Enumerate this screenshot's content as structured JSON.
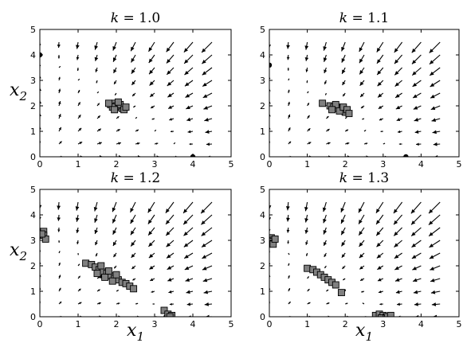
{
  "chart_data": [
    {
      "type": "scatter",
      "title": "k = 1.0",
      "xlabel": "",
      "ylabel": "x2",
      "xlim": [
        0,
        5
      ],
      "ylim": [
        0,
        5
      ],
      "xticks": [
        0,
        1,
        2,
        3,
        4,
        5
      ],
      "yticks": [
        0,
        1,
        2,
        3,
        4,
        5
      ],
      "fixed_points": [
        [
          0,
          4
        ],
        [
          4,
          0
        ]
      ],
      "squares": [
        [
          1.85,
          2.05
        ],
        [
          1.95,
          2.1
        ],
        [
          2.05,
          1.95
        ],
        [
          2.15,
          1.9
        ],
        [
          2.0,
          2.0
        ],
        [
          1.9,
          1.95
        ],
        [
          2.1,
          2.05
        ],
        [
          2.2,
          1.85
        ],
        [
          1.8,
          2.1
        ],
        [
          2.25,
          1.95
        ],
        [
          1.95,
          1.85
        ],
        [
          2.05,
          2.15
        ]
      ],
      "centroid": [
        2.0,
        2.0
      ],
      "grid": false
    },
    {
      "type": "scatter",
      "title": "k = 1.1",
      "xlabel": "",
      "ylabel": "",
      "xlim": [
        0,
        5
      ],
      "ylim": [
        0,
        5
      ],
      "xticks": [
        0,
        1,
        2,
        3,
        4,
        5
      ],
      "yticks": [
        0,
        1,
        2,
        3,
        4,
        5
      ],
      "fixed_points": [
        [
          0,
          3.6
        ],
        [
          3.6,
          0
        ]
      ],
      "squares": [
        [
          1.4,
          2.1
        ],
        [
          1.6,
          2.0
        ],
        [
          1.7,
          1.95
        ],
        [
          1.8,
          1.9
        ],
        [
          1.9,
          1.85
        ],
        [
          2.0,
          1.75
        ],
        [
          1.75,
          2.05
        ],
        [
          1.85,
          1.8
        ],
        [
          1.95,
          1.95
        ],
        [
          2.05,
          1.85
        ],
        [
          1.65,
          1.85
        ],
        [
          2.1,
          1.7
        ]
      ],
      "centroid": [
        1.85,
        1.9
      ],
      "grid": false
    },
    {
      "type": "scatter",
      "title": "k = 1.2",
      "xlabel": "x1",
      "ylabel": "x2",
      "xlim": [
        0,
        5
      ],
      "ylim": [
        0,
        5
      ],
      "xticks": [
        0,
        1,
        2,
        3,
        4,
        5
      ],
      "yticks": [
        0,
        1,
        2,
        3,
        4,
        5
      ],
      "fixed_points": [
        [
          0,
          3.2
        ],
        [
          3.3,
          0
        ]
      ],
      "squares": [
        [
          0.1,
          3.35
        ],
        [
          0.1,
          3.2
        ],
        [
          0.15,
          3.05
        ],
        [
          0.05,
          3.25
        ],
        [
          1.2,
          2.1
        ],
        [
          1.35,
          2.05
        ],
        [
          1.45,
          1.95
        ],
        [
          1.55,
          1.85
        ],
        [
          1.65,
          1.75
        ],
        [
          1.75,
          1.7
        ],
        [
          1.85,
          1.6
        ],
        [
          1.95,
          1.5
        ],
        [
          2.05,
          1.45
        ],
        [
          2.15,
          1.35
        ],
        [
          2.25,
          1.3
        ],
        [
          1.5,
          1.7
        ],
        [
          1.7,
          1.55
        ],
        [
          1.9,
          1.4
        ],
        [
          2.35,
          1.2
        ],
        [
          2.45,
          1.1
        ],
        [
          1.6,
          2.0
        ],
        [
          1.8,
          1.8
        ],
        [
          2.0,
          1.65
        ],
        [
          3.25,
          0.25
        ],
        [
          3.35,
          0.1
        ],
        [
          3.45,
          0.05
        ],
        [
          3.4,
          0.0
        ]
      ],
      "centroid": [
        1.6,
        1.7
      ],
      "grid": false
    },
    {
      "type": "scatter",
      "title": "k = 1.3",
      "xlabel": "x1",
      "ylabel": "",
      "xlim": [
        0,
        5
      ],
      "ylim": [
        0,
        5
      ],
      "xticks": [
        0,
        1,
        2,
        3,
        4,
        5
      ],
      "yticks": [
        0,
        1,
        2,
        3,
        4,
        5
      ],
      "fixed_points": [
        [
          0,
          2.9
        ],
        [
          2.9,
          0
        ]
      ],
      "squares": [
        [
          0.05,
          3.1
        ],
        [
          0.1,
          3.0
        ],
        [
          0.05,
          2.95
        ],
        [
          0.1,
          2.85
        ],
        [
          0.15,
          3.05
        ],
        [
          1.0,
          1.9
        ],
        [
          1.15,
          1.85
        ],
        [
          1.25,
          1.75
        ],
        [
          1.35,
          1.65
        ],
        [
          1.45,
          1.55
        ],
        [
          1.55,
          1.45
        ],
        [
          1.65,
          1.35
        ],
        [
          1.75,
          1.25
        ],
        [
          1.9,
          0.95
        ],
        [
          2.8,
          0.05
        ],
        [
          2.9,
          0.1
        ],
        [
          3.0,
          0.05
        ],
        [
          3.1,
          0.0
        ],
        [
          3.2,
          0.05
        ],
        [
          2.95,
          -0.05
        ]
      ],
      "centroid": null,
      "grid": false
    }
  ]
}
